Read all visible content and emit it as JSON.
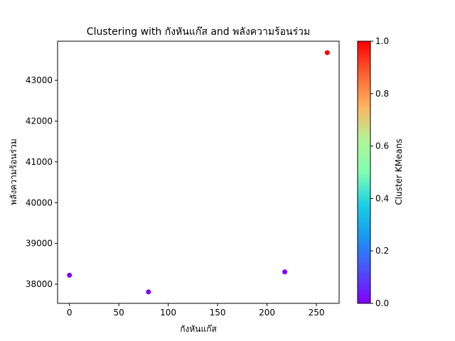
{
  "chart_data": {
    "type": "scatter",
    "title": "Clustering with กังหันแก๊ส and พลังความร้อนร่วม",
    "xlabel": "กังหันแก๊ส",
    "ylabel": "พลังความร้อนร่วม",
    "xlim": [
      -12,
      273
    ],
    "ylim": [
      37530,
      43960
    ],
    "xticks": [
      0,
      50,
      100,
      150,
      200,
      250
    ],
    "yticks": [
      38000,
      39000,
      40000,
      41000,
      42000,
      43000
    ],
    "grid": false,
    "colormap": "rainbow",
    "points": [
      {
        "x": 0,
        "y": 38220,
        "cluster": 0
      },
      {
        "x": 80,
        "y": 37810,
        "cluster": 0
      },
      {
        "x": 218,
        "y": 38300,
        "cluster": 0
      },
      {
        "x": 261,
        "y": 43680,
        "cluster": 1
      }
    ],
    "colorbar": {
      "label": "Cluster KMeans",
      "range": [
        0,
        1
      ],
      "ticks": [
        "0.0",
        "0.2",
        "0.4",
        "0.6",
        "0.8",
        "1.0"
      ],
      "colors": {
        "low": "#8000ff",
        "high": "#ff0000"
      }
    }
  }
}
